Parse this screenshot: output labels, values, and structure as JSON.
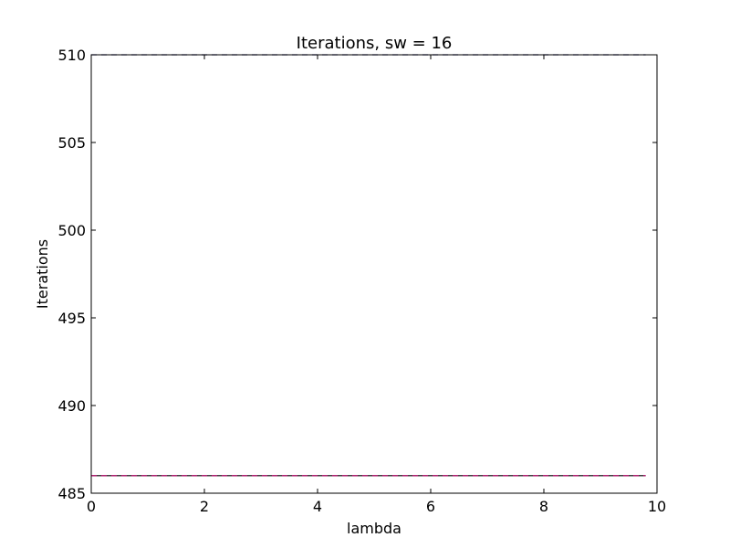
{
  "chart_data": {
    "type": "line",
    "title": "Iterations, sw = 16",
    "xlabel": "lambda",
    "ylabel": "Iterations",
    "xlim": [
      0,
      10
    ],
    "ylim": [
      485,
      510
    ],
    "x_ticks": [
      0,
      2,
      4,
      6,
      8,
      10
    ],
    "y_ticks": [
      485,
      490,
      495,
      500,
      505,
      510
    ],
    "x_tick_labels": [
      "0",
      "2",
      "4",
      "6",
      "8",
      "10"
    ],
    "y_tick_labels": [
      "485",
      "490",
      "495",
      "500",
      "505",
      "510"
    ],
    "grid": false,
    "legend": false,
    "series": [
      {
        "style": "dashed",
        "color": "#1f1f7a",
        "x": [
          0,
          0.2,
          0.4,
          0.6,
          0.8,
          1.0,
          1.2,
          1.4,
          1.6,
          1.8,
          2.0,
          2.2,
          2.4,
          2.6,
          2.8,
          3.0,
          3.2,
          3.4,
          3.6,
          3.8,
          4.0,
          4.2,
          4.4,
          4.6,
          4.8,
          5.0,
          5.2,
          5.4,
          5.6,
          5.8,
          6.0,
          6.2,
          6.4,
          6.6,
          6.8,
          7.0,
          7.2,
          7.4,
          7.6,
          7.8,
          8.0,
          8.2,
          8.4,
          8.6,
          8.8,
          9.0,
          9.2,
          9.4,
          9.6,
          9.8
        ],
        "y": [
          510,
          510,
          510,
          510,
          510,
          510,
          510,
          510,
          510,
          510,
          510,
          510,
          510,
          510,
          510,
          510,
          510,
          510,
          510,
          510,
          510,
          510,
          510,
          510,
          510,
          510,
          510,
          510,
          510,
          510,
          510,
          510,
          510,
          510,
          510,
          510,
          510,
          510,
          510,
          510,
          510,
          510,
          510,
          510,
          510,
          510,
          510,
          510,
          510,
          510
        ]
      },
      {
        "style": "solid",
        "color": "#000000",
        "x": [
          0,
          0.2,
          0.4,
          0.6,
          0.8,
          1.0,
          1.2,
          1.4,
          1.6,
          1.8,
          2.0,
          2.2,
          2.4,
          2.6,
          2.8,
          3.0,
          3.2,
          3.4,
          3.6,
          3.8,
          4.0,
          4.2,
          4.4,
          4.6,
          4.8,
          5.0,
          5.2,
          5.4,
          5.6,
          5.8,
          6.0,
          6.2,
          6.4,
          6.6,
          6.8,
          7.0,
          7.2,
          7.4,
          7.6,
          7.8,
          8.0,
          8.2,
          8.4,
          8.6,
          8.8,
          9.0,
          9.2,
          9.4,
          9.6,
          9.8
        ],
        "y": [
          486,
          486,
          486,
          486,
          486,
          486,
          486,
          486,
          486,
          486,
          486,
          486,
          486,
          486,
          486,
          486,
          486,
          486,
          486,
          486,
          486,
          486,
          486,
          486,
          486,
          486,
          486,
          486,
          486,
          486,
          486,
          486,
          486,
          486,
          486,
          486,
          486,
          486,
          486,
          486,
          486,
          486,
          486,
          486,
          486,
          486,
          486,
          486,
          486,
          486
        ]
      },
      {
        "style": "dashed",
        "color": "#c0006e",
        "x": [
          0,
          0.2,
          0.4,
          0.6,
          0.8,
          1.0,
          1.2,
          1.4,
          1.6,
          1.8,
          2.0,
          2.2,
          2.4,
          2.6,
          2.8,
          3.0,
          3.2,
          3.4,
          3.6,
          3.8,
          4.0,
          4.2,
          4.4,
          4.6,
          4.8,
          5.0,
          5.2,
          5.4,
          5.6,
          5.8,
          6.0,
          6.2,
          6.4,
          6.6,
          6.8,
          7.0,
          7.2,
          7.4,
          7.6,
          7.8,
          8.0,
          8.2,
          8.4,
          8.6,
          8.8,
          9.0,
          9.2,
          9.4,
          9.6,
          9.8
        ],
        "y": [
          486,
          486,
          486,
          486,
          486,
          486,
          486,
          486,
          486,
          486,
          486,
          486,
          486,
          486,
          486,
          486,
          486,
          486,
          486,
          486,
          486,
          486,
          486,
          486,
          486,
          486,
          486,
          486,
          486,
          486,
          486,
          486,
          486,
          486,
          486,
          486,
          486,
          486,
          486,
          486,
          486,
          486,
          486,
          486,
          486,
          486,
          486,
          486,
          486,
          486
        ]
      }
    ]
  }
}
